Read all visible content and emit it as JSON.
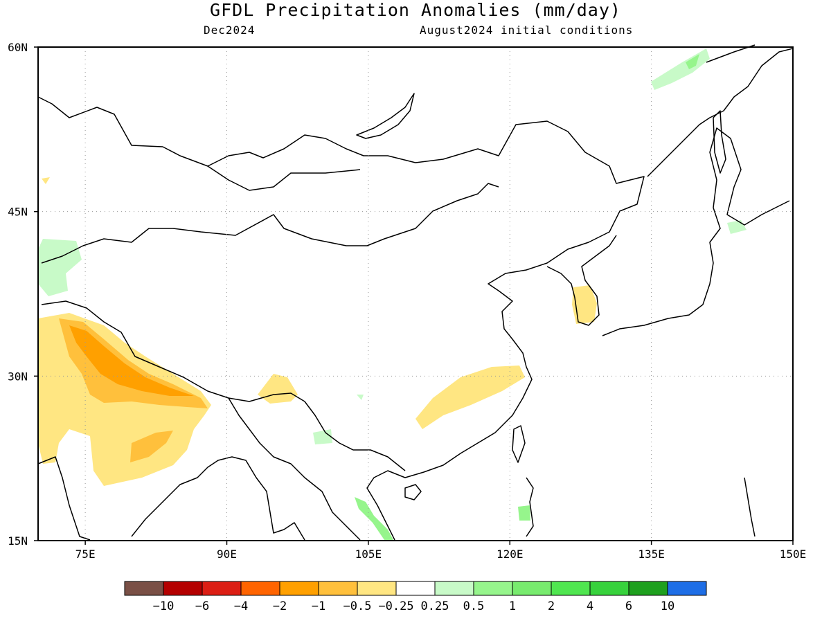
{
  "header": {
    "title": "GFDL Precipitation Anomalies (mm/day)",
    "valid_month": "Dec2024",
    "init_text": "August2024 initial conditions"
  },
  "map": {
    "lat_labels": [
      "60N",
      "45N",
      "30N",
      "15N"
    ],
    "lon_labels": [
      "75E",
      "90E",
      "105E",
      "120E",
      "135E",
      "150E"
    ],
    "lon_range": [
      70,
      150
    ],
    "lat_range": [
      15,
      60
    ],
    "gridlines": "dotted"
  },
  "colorbar": {
    "colors": [
      "#7a5046",
      "#b40000",
      "#dc1e14",
      "#ff6400",
      "#ffa000",
      "#ffc03c",
      "#ffe682",
      "#ffffff",
      "#c8fac8",
      "#96f58c",
      "#78eb6e",
      "#50e650",
      "#37d23c",
      "#1ea01e",
      "#1e6ee6"
    ],
    "labels": [
      "-10",
      "-6",
      "-4",
      "-2",
      "-1",
      "-0.5",
      "-0.25",
      "0.25",
      "0.5",
      "1",
      "2",
      "4",
      "6",
      "10"
    ]
  }
}
